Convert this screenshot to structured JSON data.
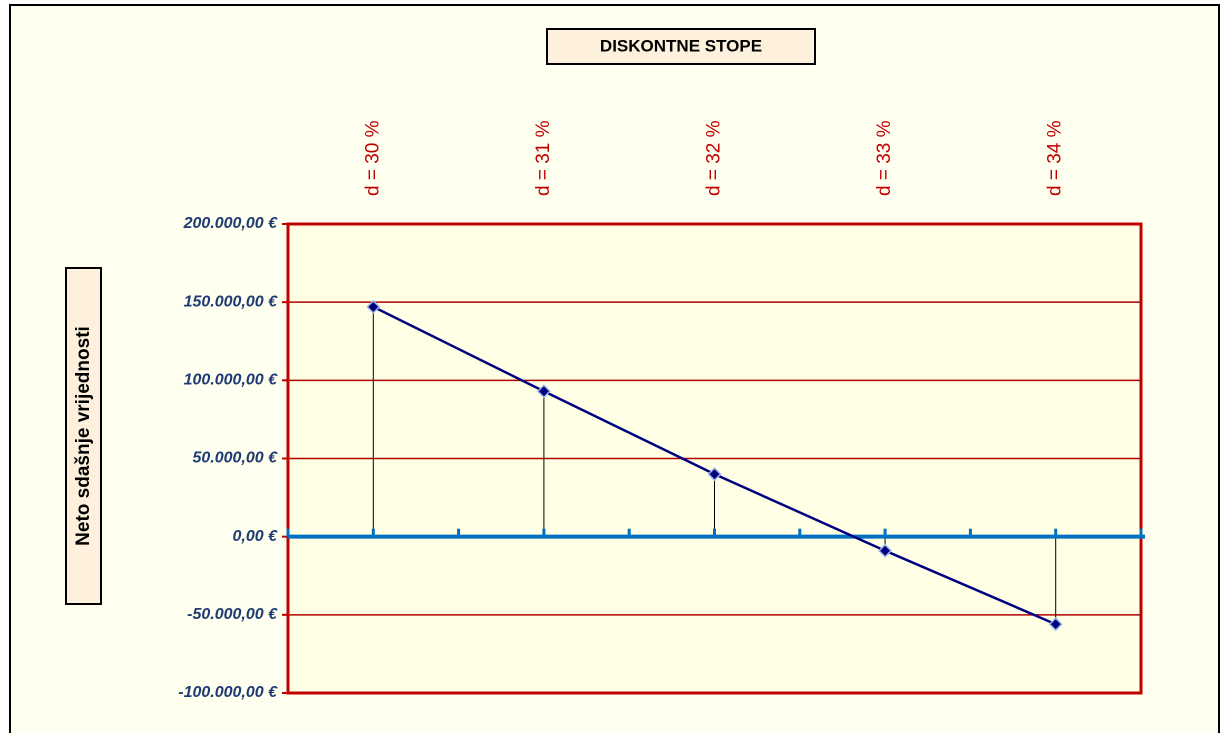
{
  "chart_data": {
    "type": "line",
    "title": "DISKONTNE STOPE",
    "y_label": "Neto sdašnje vrijednosti",
    "categories": [
      "d = 30 %",
      "d = 31 %",
      "d = 32 %",
      "d = 33 %",
      "d = 34 %"
    ],
    "values": [
      147000,
      93000,
      40000,
      -9000,
      -56000
    ],
    "color": "#000080",
    "ylim": [
      -100000,
      200000
    ],
    "yticks": [
      {
        "value": -100000,
        "label": "-100.000,00 €"
      },
      {
        "value": -50000,
        "label": "-50.000,00 €"
      },
      {
        "value": 0,
        "label": "0,00 €"
      },
      {
        "value": 50000,
        "label": "50.000,00 €"
      },
      {
        "value": 100000,
        "label": "100.000,00 €"
      },
      {
        "value": 150000,
        "label": "150.000,00 €"
      },
      {
        "value": 200000,
        "label": "200.000,00 €"
      }
    ],
    "grid": true,
    "drop_lines": true
  }
}
